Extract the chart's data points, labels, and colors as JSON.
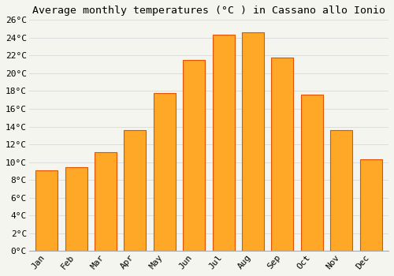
{
  "title": "Average monthly temperatures (°C ) in Cassano allo Ionio",
  "months": [
    "Jan",
    "Feb",
    "Mar",
    "Apr",
    "May",
    "Jun",
    "Jul",
    "Aug",
    "Sep",
    "Oct",
    "Nov",
    "Dec"
  ],
  "values": [
    9.1,
    9.4,
    11.1,
    13.6,
    17.8,
    21.5,
    24.3,
    24.6,
    21.8,
    17.6,
    13.6,
    10.3
  ],
  "bar_color": "#FFA726",
  "bar_edge_color": "#E65100",
  "ylim": [
    0,
    26
  ],
  "yticks": [
    0,
    2,
    4,
    6,
    8,
    10,
    12,
    14,
    16,
    18,
    20,
    22,
    24,
    26
  ],
  "background_color": "#F5F5F0",
  "plot_bg_color": "#F5F5F0",
  "grid_color": "#DDDDDD",
  "title_fontsize": 9.5,
  "tick_fontsize": 8,
  "font_family": "monospace"
}
